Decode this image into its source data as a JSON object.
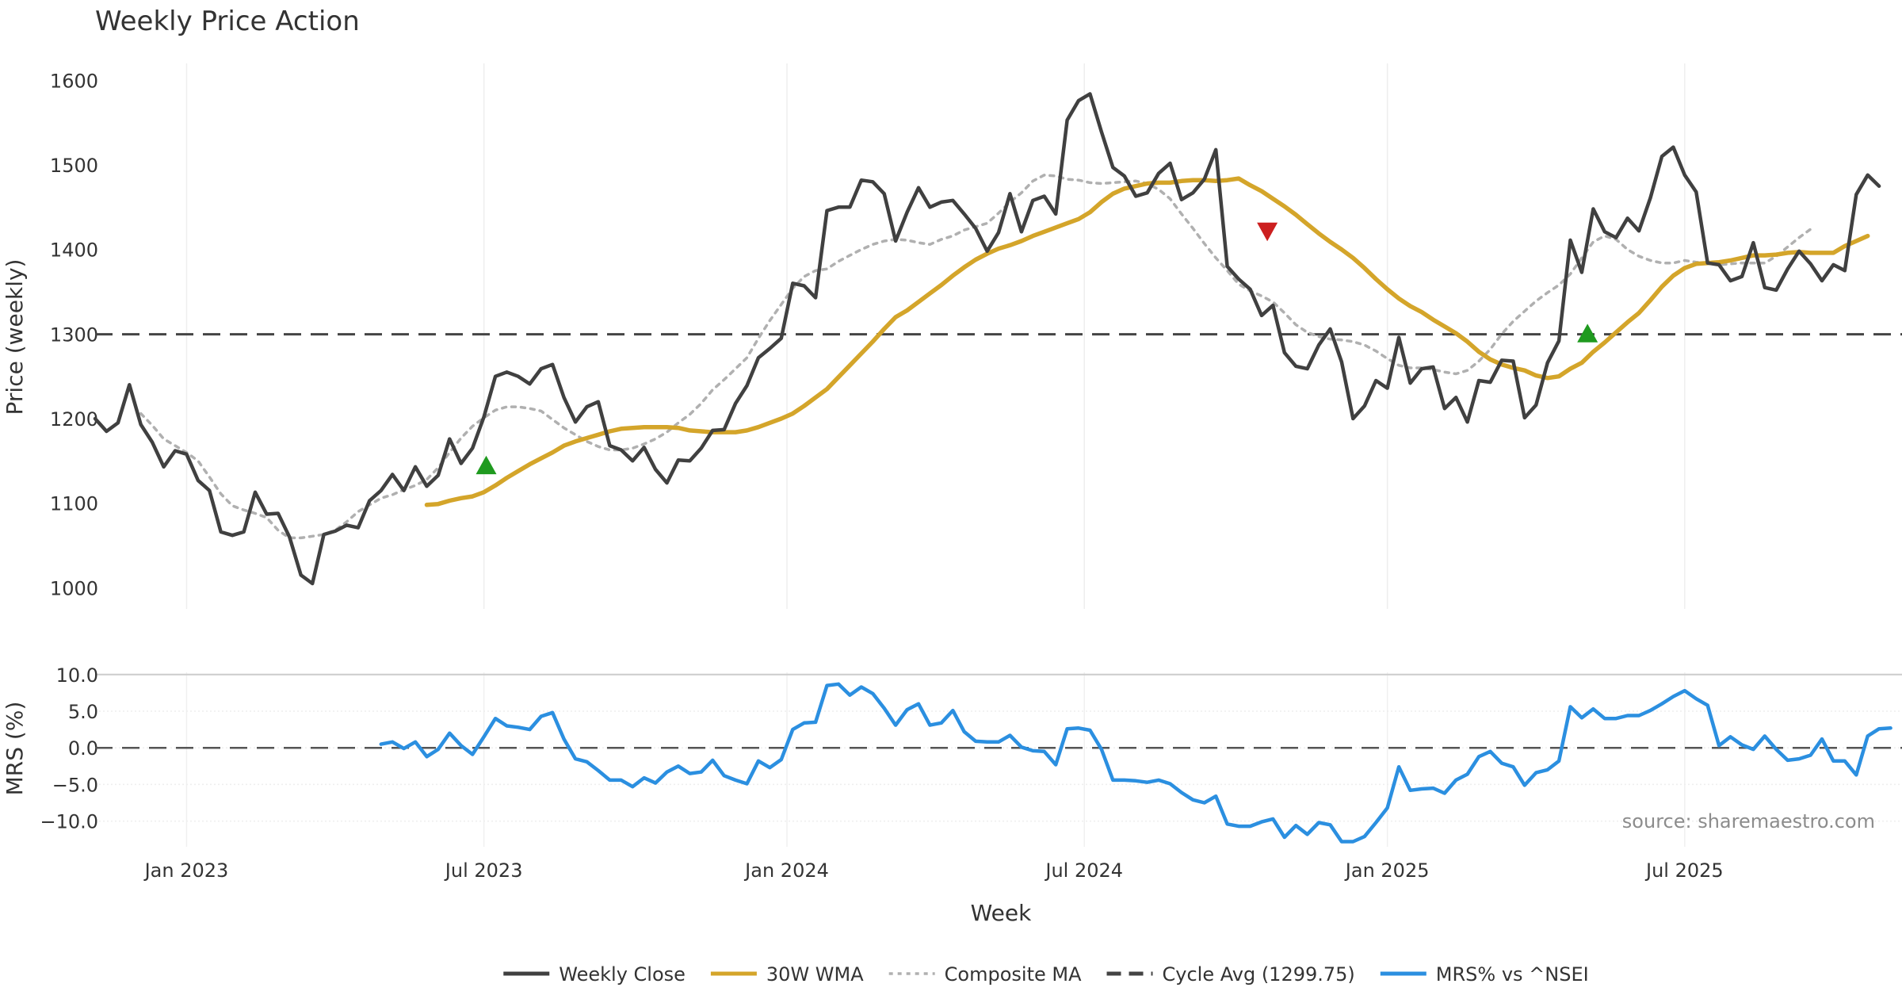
{
  "chart_data": {
    "type": "line",
    "title": "Weekly Price Action",
    "xlabel": "Week",
    "source_note": "source: sharemaestro.com",
    "x_ticks": [
      "Jan 2023",
      "Jul 2023",
      "Jan 2024",
      "Jul 2024",
      "Jan 2025",
      "Jul 2025"
    ],
    "x_tick_weeks": [
      0,
      26,
      52.5,
      78.5,
      105,
      131
    ],
    "x_range": [
      -8,
      150
    ],
    "price_panel": {
      "ylabel": "Price (weekly)",
      "ylim": [
        975,
        1620
      ],
      "yticks": [
        1000,
        1100,
        1200,
        1300,
        1400,
        1500,
        1600
      ],
      "series": [
        {
          "name": "Weekly Close",
          "color": "#404040",
          "style": "solid",
          "start_week": -8,
          "values": [
            1200,
            1185,
            1195,
            1240,
            1193,
            1172,
            1143,
            1162,
            1158,
            1127,
            1115,
            1066,
            1062,
            1066,
            1113,
            1087,
            1088,
            1060,
            1015,
            1005,
            1063,
            1067,
            1074,
            1071,
            1103,
            1115,
            1134,
            1115,
            1143,
            1120,
            1133,
            1176,
            1147,
            1165,
            1202,
            1250,
            1255,
            1250,
            1241,
            1259,
            1264,
            1225,
            1196,
            1214,
            1220,
            1168,
            1163,
            1150,
            1166,
            1140,
            1124,
            1151,
            1150,
            1165,
            1186,
            1187,
            1218,
            1239,
            1272,
            1283,
            1295,
            1360,
            1357,
            1343,
            1446,
            1450,
            1450,
            1482,
            1480,
            1466,
            1410,
            1444,
            1473,
            1450,
            1456,
            1458,
            1442,
            1425,
            1398,
            1420,
            1466,
            1421,
            1458,
            1463,
            1442,
            1553,
            1576,
            1584,
            1539,
            1497,
            1487,
            1463,
            1467,
            1490,
            1502,
            1459,
            1467,
            1483,
            1518,
            1380,
            1365,
            1353,
            1322,
            1334,
            1278,
            1262,
            1259,
            1287,
            1306,
            1267,
            1200,
            1215,
            1245,
            1236,
            1296,
            1242,
            1259,
            1261,
            1212,
            1225,
            1196,
            1245,
            1243,
            1269,
            1268,
            1201,
            1216,
            1266,
            1292,
            1411,
            1373,
            1448,
            1421,
            1414,
            1437,
            1422,
            1461,
            1510,
            1521,
            1488,
            1468,
            1384,
            1382,
            1363,
            1368,
            1408,
            1355,
            1352,
            1377,
            1398,
            1383,
            1363,
            1382,
            1375,
            1465,
            1488,
            1475
          ]
        },
        {
          "name": "30W WMA",
          "color": "#d4a52a",
          "style": "solid",
          "start_week": 21,
          "values": [
            1098,
            1099,
            1103,
            1106,
            1108,
            1113,
            1121,
            1130,
            1138,
            1146,
            1153,
            1160,
            1168,
            1173,
            1177,
            1181,
            1185,
            1188,
            1189,
            1190,
            1190,
            1190,
            1189,
            1186,
            1185,
            1184,
            1184,
            1184,
            1186,
            1190,
            1195,
            1200,
            1206,
            1215,
            1225,
            1235,
            1249,
            1263,
            1277,
            1291,
            1306,
            1320,
            1328,
            1338,
            1348,
            1358,
            1369,
            1379,
            1388,
            1395,
            1401,
            1405,
            1410,
            1416,
            1421,
            1426,
            1431,
            1436,
            1444,
            1456,
            1466,
            1472,
            1475,
            1478,
            1479,
            1479,
            1481,
            1482,
            1482,
            1481,
            1482,
            1484,
            1476,
            1469,
            1460,
            1451,
            1441,
            1430,
            1419,
            1409,
            1400,
            1390,
            1378,
            1365,
            1353,
            1342,
            1333,
            1326,
            1317,
            1309,
            1301,
            1291,
            1279,
            1270,
            1264,
            1260,
            1257,
            1251,
            1248,
            1250,
            1259,
            1266,
            1279,
            1290,
            1302,
            1314,
            1325,
            1340,
            1356,
            1369,
            1378,
            1383,
            1384,
            1385,
            1387,
            1390,
            1393,
            1393,
            1394,
            1396,
            1397,
            1396,
            1396,
            1396,
            1404,
            1410,
            1416
          ]
        },
        {
          "name": "Composite MA",
          "color": "#b0b0b0",
          "style": "dotted",
          "start_week": -4,
          "values": [
            1206,
            1192,
            1176,
            1168,
            1160,
            1150,
            1131,
            1111,
            1097,
            1092,
            1088,
            1083,
            1068,
            1059,
            1059,
            1061,
            1063,
            1068,
            1078,
            1090,
            1098,
            1106,
            1110,
            1116,
            1121,
            1128,
            1142,
            1160,
            1177,
            1191,
            1201,
            1210,
            1214,
            1214,
            1212,
            1209,
            1199,
            1189,
            1181,
            1173,
            1167,
            1163,
            1163,
            1165,
            1170,
            1176,
            1184,
            1195,
            1205,
            1218,
            1234,
            1246,
            1259,
            1272,
            1295,
            1316,
            1335,
            1354,
            1368,
            1375,
            1377,
            1386,
            1393,
            1400,
            1406,
            1410,
            1412,
            1411,
            1408,
            1406,
            1412,
            1416,
            1423,
            1427,
            1431,
            1443,
            1456,
            1467,
            1481,
            1488,
            1487,
            1483,
            1482,
            1479,
            1478,
            1479,
            1480,
            1481,
            1478,
            1471,
            1460,
            1442,
            1425,
            1407,
            1390,
            1375,
            1359,
            1351,
            1345,
            1338,
            1325,
            1311,
            1302,
            1297,
            1294,
            1293,
            1291,
            1287,
            1280,
            1271,
            1263,
            1260,
            1260,
            1258,
            1255,
            1253,
            1257,
            1268,
            1282,
            1300,
            1315,
            1327,
            1339,
            1349,
            1358,
            1371,
            1390,
            1409,
            1416,
            1412,
            1400,
            1392,
            1387,
            1384,
            1384,
            1387,
            1385,
            1384,
            1382,
            1383,
            1384,
            1384,
            1384,
            1392,
            1403,
            1414,
            1424
          ]
        }
      ],
      "cycle_avg": {
        "name": "Cycle Avg (1299.75)",
        "value": 1299.75,
        "color": "#444444",
        "style": "dashed"
      },
      "markers": [
        {
          "type": "buy",
          "shape": "triangle-up",
          "color": "#1f9a1f",
          "week": 26.2,
          "price": 1144
        },
        {
          "type": "sell",
          "shape": "triangle-down",
          "color": "#cc1f1f",
          "week": 94.5,
          "price": 1422
        },
        {
          "type": "buy",
          "shape": "triangle-up",
          "color": "#1f9a1f",
          "week": 122.5,
          "price": 1300
        }
      ]
    },
    "mrs_panel": {
      "ylabel": "MRS (%)",
      "ylim": [
        -13.5,
        10.3
      ],
      "yticks": [
        10.0,
        5.0,
        0.0,
        -5.0,
        -10.0
      ],
      "ytick_labels": [
        "10.0",
        "5.0",
        "0.0",
        "−5.0",
        "−10.0"
      ],
      "zero_line": {
        "value": 0,
        "color": "#555555",
        "style": "dashed"
      },
      "series": [
        {
          "name": "MRS% vs ^NSEI",
          "color": "#2b8fe0",
          "style": "solid",
          "start_week": 17,
          "values": [
            0.5,
            0.8,
            -0.1,
            0.8,
            -1.2,
            -0.2,
            2.0,
            0.3,
            -0.9,
            1.5,
            4.0,
            3.0,
            2.8,
            2.5,
            4.3,
            4.8,
            1.2,
            -1.5,
            -1.9,
            -3.1,
            -4.4,
            -4.4,
            -5.3,
            -4.1,
            -4.8,
            -3.3,
            -2.5,
            -3.5,
            -3.3,
            -1.7,
            -3.8,
            -4.4,
            -4.9,
            -1.8,
            -2.7,
            -1.6,
            2.5,
            3.4,
            3.5,
            8.5,
            8.7,
            7.2,
            8.3,
            7.4,
            5.4,
            3.1,
            5.2,
            6.0,
            3.1,
            3.4,
            5.1,
            2.2,
            0.9,
            0.8,
            0.8,
            1.7,
            0.1,
            -0.4,
            -0.5,
            -2.3,
            2.6,
            2.7,
            2.4,
            -0.2,
            -4.4,
            -4.4,
            -4.5,
            -4.7,
            -4.4,
            -4.9,
            -6.1,
            -7.1,
            -7.5,
            -6.6,
            -10.4,
            -10.7,
            -10.7,
            -10.1,
            -9.7,
            -12.2,
            -10.6,
            -11.8,
            -10.2,
            -10.5,
            -12.8,
            -12.8,
            -12.1,
            -10.2,
            -8.2,
            -2.6,
            -5.8,
            -5.6,
            -5.5,
            -6.2,
            -4.4,
            -3.6,
            -1.2,
            -0.5,
            -2.1,
            -2.6,
            -5.1,
            -3.4,
            -3.0,
            -1.8,
            5.6,
            4.1,
            5.3,
            4.0,
            4.0,
            4.4,
            4.4,
            5.1,
            6.0,
            7.0,
            7.8,
            6.7,
            5.8,
            0.3,
            1.5,
            0.4,
            -0.2,
            1.6,
            -0.2,
            -1.7,
            -1.5,
            -1.0,
            1.2,
            -1.8,
            -1.8,
            -3.7,
            1.6,
            2.6,
            2.7
          ]
        }
      ]
    },
    "legend": [
      {
        "label": "Weekly Close",
        "color": "#404040",
        "style": "solid"
      },
      {
        "label": "30W WMA",
        "color": "#d4a52a",
        "style": "solid"
      },
      {
        "label": "Composite MA",
        "color": "#b0b0b0",
        "style": "dotted"
      },
      {
        "label": "Cycle Avg (1299.75)",
        "color": "#444444",
        "style": "dashed"
      },
      {
        "label": "MRS% vs ^NSEI",
        "color": "#2b8fe0",
        "style": "solid"
      }
    ],
    "legend_position": "bottom-center"
  }
}
